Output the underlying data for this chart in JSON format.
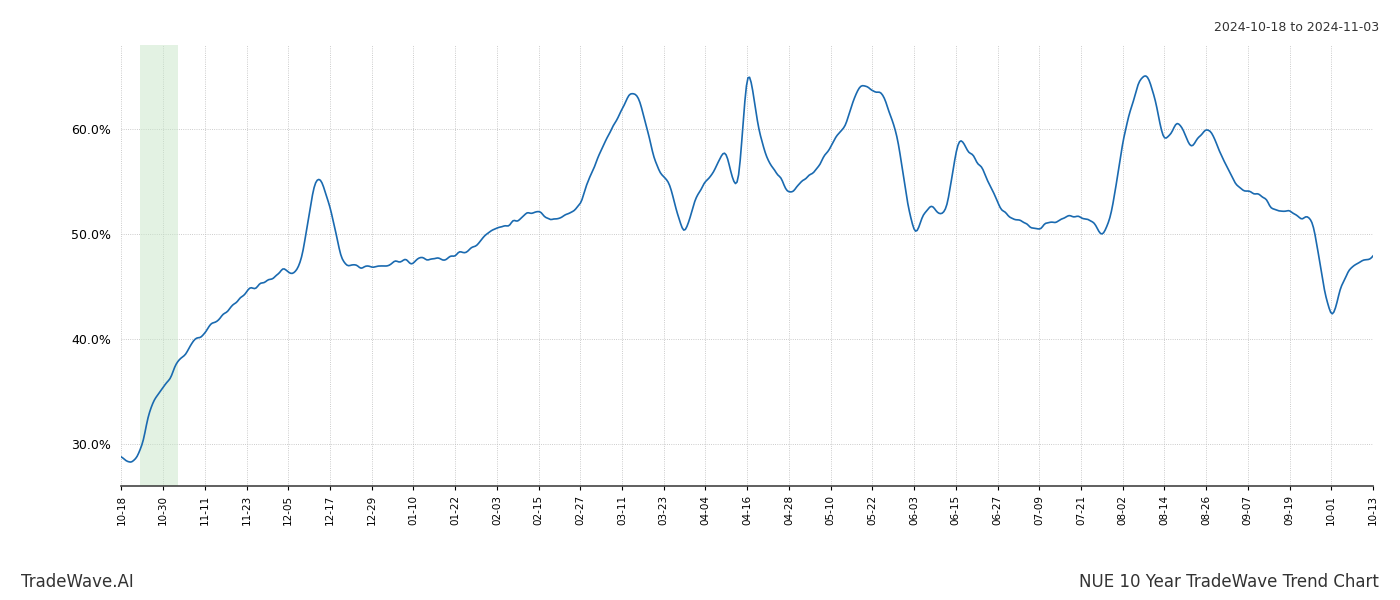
{
  "title_top_right": "2024-10-18 to 2024-11-03",
  "title_bottom_left": "TradeWave.AI",
  "title_bottom_right": "NUE 10 Year TradeWave Trend Chart",
  "ylim": [
    26.0,
    68.0
  ],
  "yticks": [
    30.0,
    40.0,
    50.0,
    60.0
  ],
  "line_color": "#1a6ab0",
  "line_width": 1.2,
  "shade_color": "#c8e6c9",
  "shade_alpha": 0.5,
  "background_color": "#ffffff",
  "grid_color": "#bbbbbb",
  "xtick_labels": [
    "10-18",
    "10-30",
    "11-11",
    "11-23",
    "12-05",
    "12-17",
    "12-29",
    "01-10",
    "01-22",
    "02-03",
    "02-15",
    "02-27",
    "03-11",
    "03-23",
    "04-04",
    "04-16",
    "04-28",
    "05-10",
    "05-22",
    "06-03",
    "06-15",
    "06-27",
    "07-09",
    "07-21",
    "08-02",
    "08-14",
    "08-26",
    "09-07",
    "09-19",
    "10-01",
    "10-13"
  ],
  "shade_xstart": 0.45,
  "shade_xend": 1.35
}
